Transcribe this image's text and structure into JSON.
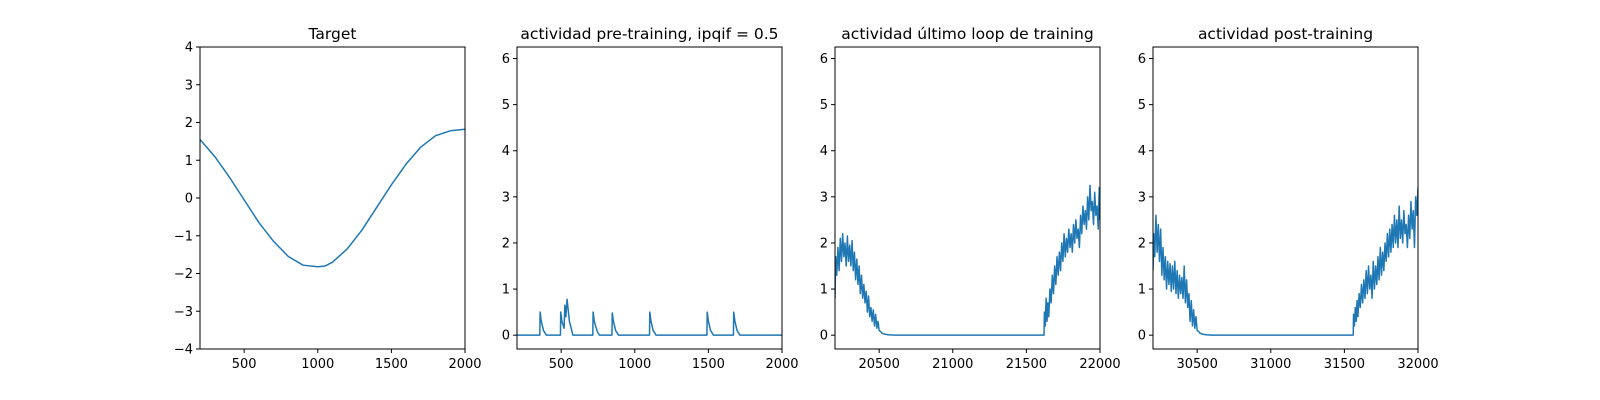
{
  "chart_data": [
    {
      "type": "line",
      "title": "Target",
      "xlabel": "",
      "ylabel": "",
      "xlim": [
        200,
        2000
      ],
      "ylim": [
        -4,
        4
      ],
      "xticks": [
        500,
        1000,
        1500,
        2000
      ],
      "xtick_labels": [
        "500",
        "1000",
        "1500",
        "2000"
      ],
      "yticks": [
        -4,
        -3,
        -2,
        -1,
        0,
        1,
        2,
        3,
        4
      ],
      "ytick_labels": [
        "−4",
        "−3",
        "−2",
        "−1",
        "0",
        "1",
        "2",
        "3",
        "4"
      ],
      "grid": false,
      "series": [
        {
          "color": "#1f77b4",
          "x": [
            200,
            300,
            400,
            500,
            600,
            700,
            800,
            900,
            1000,
            1050,
            1100,
            1200,
            1300,
            1400,
            1500,
            1600,
            1700,
            1800,
            1900,
            2000
          ],
          "y": [
            1.55,
            1.1,
            0.55,
            -0.05,
            -0.65,
            -1.15,
            -1.55,
            -1.78,
            -1.82,
            -1.8,
            -1.7,
            -1.35,
            -0.85,
            -0.25,
            0.35,
            0.9,
            1.35,
            1.65,
            1.78,
            1.82
          ]
        }
      ]
    },
    {
      "type": "line",
      "title": "actividad pre-training, ipqif = 0.5",
      "xlabel": "",
      "ylabel": "",
      "xlim": [
        200,
        2000
      ],
      "ylim": [
        -0.3,
        6.25
      ],
      "xticks": [
        500,
        1000,
        1500,
        2000
      ],
      "xtick_labels": [
        "500",
        "1000",
        "1500",
        "2000"
      ],
      "yticks": [
        0,
        1,
        2,
        3,
        4,
        5,
        6
      ],
      "ytick_labels": [
        "0",
        "1",
        "2",
        "3",
        "4",
        "5",
        "6"
      ],
      "grid": false,
      "series": [
        {
          "color": "#1f77b4",
          "x": [
            200,
            355,
            357,
            365,
            380,
            400,
            495,
            497,
            505,
            520,
            525,
            532,
            540,
            556,
            580,
            715,
            717,
            725,
            745,
            760,
            845,
            847,
            855,
            870,
            890,
            1100,
            1102,
            1110,
            1125,
            1145,
            1490,
            1492,
            1500,
            1515,
            1535,
            1670,
            1672,
            1680,
            1695,
            1715,
            2000
          ],
          "y": [
            0,
            0,
            0.5,
            0.3,
            0.1,
            0,
            0,
            0.5,
            0.3,
            0.15,
            0.65,
            0.4,
            0.78,
            0.3,
            0,
            0,
            0.5,
            0.3,
            0.08,
            0,
            0,
            0.48,
            0.3,
            0.1,
            0,
            0,
            0.5,
            0.3,
            0.1,
            0,
            0,
            0.5,
            0.3,
            0.1,
            0,
            0,
            0.5,
            0.3,
            0.1,
            0,
            0
          ]
        }
      ]
    },
    {
      "type": "line",
      "title": "actividad último loop de training",
      "xlabel": "",
      "ylabel": "",
      "xlim": [
        20200,
        22000
      ],
      "ylim": [
        -0.3,
        6.25
      ],
      "xticks": [
        20500,
        21000,
        21500,
        22000
      ],
      "xtick_labels": [
        "20500",
        "21000",
        "21500",
        "22000"
      ],
      "yticks": [
        0,
        1,
        2,
        3,
        4,
        5,
        6
      ],
      "ytick_labels": [
        "0",
        "1",
        "2",
        "3",
        "4",
        "5",
        "6"
      ],
      "grid": false,
      "series": [
        {
          "color": "#1f77b4",
          "x": [
            20200,
            20205,
            20212,
            20220,
            20228,
            20236,
            20244,
            20252,
            20260,
            20268,
            20276,
            20284,
            20292,
            20300,
            20308,
            20316,
            20324,
            20332,
            20340,
            20348,
            20356,
            20364,
            20372,
            20380,
            20388,
            20396,
            20404,
            20412,
            20420,
            20428,
            20436,
            20444,
            20452,
            20460,
            20468,
            20476,
            20484,
            20492,
            20500,
            20510,
            20520,
            20540,
            20560,
            20600,
            21620,
            21622,
            21628,
            21634,
            21640,
            21646,
            21652,
            21660,
            21668,
            21676,
            21684,
            21692,
            21700,
            21708,
            21716,
            21724,
            21732,
            21740,
            21748,
            21756,
            21764,
            21772,
            21780,
            21788,
            21796,
            21804,
            21812,
            21820,
            21828,
            21836,
            21844,
            21852,
            21860,
            21868,
            21876,
            21884,
            21892,
            21900,
            21908,
            21916,
            21924,
            21932,
            21940,
            21948,
            21956,
            21964,
            21972,
            21980,
            21988,
            21995,
            22000
          ],
          "y": [
            0.8,
            1.7,
            1.3,
            1.9,
            1.4,
            2.1,
            1.6,
            2.2,
            1.7,
            2.0,
            1.5,
            2.15,
            1.6,
            1.95,
            1.5,
            2.05,
            1.4,
            1.8,
            1.2,
            1.65,
            1.1,
            1.5,
            0.9,
            1.3,
            0.8,
            1.1,
            0.7,
            0.95,
            0.5,
            0.85,
            0.4,
            0.6,
            0.3,
            0.55,
            0.2,
            0.45,
            0.15,
            0.3,
            0.1,
            0.08,
            0.04,
            0.02,
            0.01,
            0,
            0,
            0.5,
            0.2,
            0.8,
            0.3,
            0.7,
            0.4,
            1.0,
            0.7,
            1.3,
            0.9,
            1.5,
            1.1,
            1.7,
            1.3,
            1.8,
            1.4,
            2.0,
            1.6,
            2.2,
            1.7,
            2.1,
            1.8,
            2.3,
            1.9,
            2.2,
            1.8,
            2.4,
            2.0,
            2.5,
            2.1,
            2.3,
            1.9,
            2.6,
            2.2,
            2.8,
            2.4,
            2.7,
            2.3,
            3.0,
            2.5,
            3.25,
            2.7,
            2.9,
            2.4,
            3.1,
            2.6,
            2.8,
            2.3,
            3.2,
            2.5
          ]
        }
      ]
    },
    {
      "type": "line",
      "title": "actividad post-training",
      "xlabel": "",
      "ylabel": "",
      "xlim": [
        30200,
        32000
      ],
      "ylim": [
        -0.3,
        6.25
      ],
      "xticks": [
        30500,
        31000,
        31500,
        32000
      ],
      "xtick_labels": [
        "30500",
        "31000",
        "31500",
        "32000"
      ],
      "yticks": [
        0,
        1,
        2,
        3,
        4,
        5,
        6
      ],
      "ytick_labels": [
        "0",
        "1",
        "2",
        "3",
        "4",
        "5",
        "6"
      ],
      "grid": false,
      "series": [
        {
          "color": "#1f77b4",
          "x": [
            30200,
            30205,
            30212,
            30220,
            30228,
            30236,
            30244,
            30252,
            30260,
            30268,
            30276,
            30284,
            30292,
            30300,
            30308,
            30316,
            30324,
            30332,
            30340,
            30348,
            30356,
            30364,
            30372,
            30380,
            30388,
            30396,
            30404,
            30412,
            30420,
            30428,
            30436,
            30444,
            30452,
            30460,
            30468,
            30476,
            30484,
            30492,
            30500,
            30510,
            30520,
            30540,
            30560,
            30600,
            31560,
            31562,
            31568,
            31574,
            31580,
            31586,
            31592,
            31600,
            31608,
            31616,
            31624,
            31632,
            31640,
            31648,
            31656,
            31664,
            31672,
            31680,
            31688,
            31696,
            31704,
            31712,
            31720,
            31728,
            31736,
            31744,
            31752,
            31760,
            31768,
            31776,
            31784,
            31792,
            31800,
            31808,
            31816,
            31824,
            31832,
            31840,
            31848,
            31856,
            31864,
            31872,
            31880,
            31888,
            31896,
            31904,
            31912,
            31920,
            31928,
            31936,
            31944,
            31952,
            31960,
            31968,
            31976,
            31984,
            31992,
            32000
          ],
          "y": [
            1.4,
            2.2,
            1.7,
            2.6,
            1.8,
            2.4,
            1.6,
            2.3,
            1.3,
            1.9,
            1.2,
            1.7,
            1.0,
            1.6,
            1.1,
            1.55,
            0.95,
            1.5,
            1.0,
            1.6,
            0.9,
            1.4,
            0.8,
            1.3,
            0.9,
            1.25,
            0.8,
            1.5,
            0.7,
            1.2,
            0.6,
            0.9,
            0.3,
            0.75,
            0.2,
            0.55,
            0.15,
            0.4,
            0.1,
            0.08,
            0.04,
            0.02,
            0.01,
            0,
            0,
            0.45,
            0.2,
            0.6,
            0.3,
            0.75,
            0.4,
            0.9,
            0.6,
            1.1,
            0.7,
            1.2,
            0.8,
            1.4,
            0.9,
            1.5,
            1.0,
            1.3,
            0.8,
            1.6,
            1.0,
            1.5,
            1.1,
            1.7,
            1.2,
            1.9,
            1.3,
            1.8,
            1.4,
            2.0,
            1.6,
            2.2,
            1.7,
            2.3,
            1.8,
            2.4,
            1.9,
            2.6,
            2.0,
            2.5,
            1.9,
            2.8,
            2.1,
            2.5,
            2.0,
            2.7,
            2.2,
            2.4,
            1.9,
            2.6,
            2.1,
            2.9,
            2.3,
            2.7,
            1.9,
            3.0,
            2.6,
            3.2
          ]
        }
      ]
    }
  ]
}
